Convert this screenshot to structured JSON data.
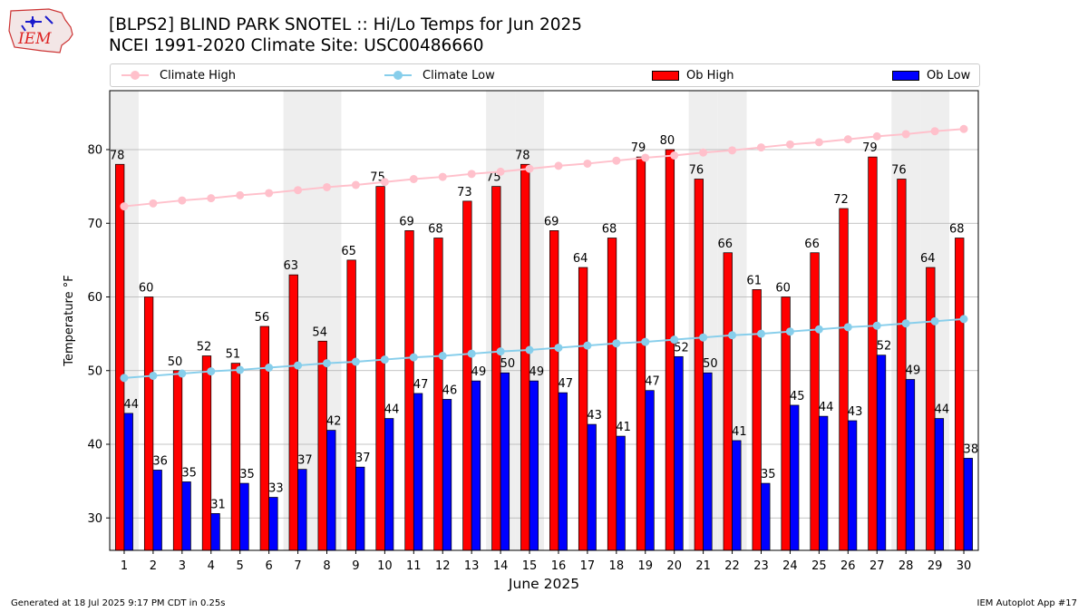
{
  "title_line1": "[BLPS2] BLIND PARK SNOTEL :: Hi/Lo Temps for Jun 2025",
  "title_line2": "NCEI 1991-2020 Climate Site: USC00486660",
  "logo_text": "IEM",
  "footer_left": "Generated at 18 Jul 2025 9:17 PM CDT in 0.25s",
  "footer_right": "IEM Autoplot App #17",
  "legend": {
    "climate_high": "Climate High",
    "climate_low": "Climate Low",
    "ob_high": "Ob High",
    "ob_low": "Ob Low"
  },
  "colors": {
    "climate_high": "#ffc0cb",
    "climate_low": "#87ceeb",
    "ob_high": "#ff0000",
    "ob_low": "#0000ff",
    "weekend_band": "#eeeeee",
    "grid": "#b0b0b0"
  },
  "chart_data": {
    "type": "bar",
    "xlabel": "June 2025",
    "ylabel": "Temperature °F",
    "ylim": [
      25.6,
      88
    ],
    "yticks": [
      30,
      40,
      50,
      60,
      70,
      80
    ],
    "grid": "horizontal",
    "legend_position": "top",
    "categories": [
      1,
      2,
      3,
      4,
      5,
      6,
      7,
      8,
      9,
      10,
      11,
      12,
      13,
      14,
      15,
      16,
      17,
      18,
      19,
      20,
      21,
      22,
      23,
      24,
      25,
      26,
      27,
      28,
      29,
      30
    ],
    "shaded_days": [
      1,
      7,
      8,
      14,
      15,
      21,
      22,
      28,
      29
    ],
    "series": [
      {
        "name": "Ob High",
        "kind": "bar",
        "values": [
          78,
          60,
          50,
          52,
          51,
          56,
          63,
          54,
          65,
          75,
          69,
          68,
          73,
          75,
          78,
          69,
          64,
          68,
          79,
          80,
          76,
          66,
          61,
          60,
          66,
          72,
          79,
          76,
          64,
          68
        ],
        "labels": [
          78,
          60,
          50,
          52,
          51,
          56,
          63,
          54,
          65,
          75,
          69,
          68,
          73,
          75,
          78,
          69,
          64,
          68,
          79,
          80,
          76,
          66,
          61,
          60,
          66,
          72,
          79,
          76,
          64,
          68
        ]
      },
      {
        "name": "Ob Low",
        "kind": "bar",
        "values": [
          44.2,
          36.5,
          34.9,
          30.6,
          34.7,
          32.8,
          36.6,
          41.9,
          36.9,
          43.5,
          46.9,
          46.1,
          48.6,
          49.7,
          48.6,
          47.0,
          42.7,
          41.1,
          47.3,
          51.9,
          49.7,
          40.5,
          34.7,
          45.3,
          43.8,
          43.2,
          52.1,
          48.8,
          43.5,
          38.1
        ],
        "labels": [
          44,
          36,
          35,
          31,
          35,
          33,
          37,
          42,
          37,
          44,
          47,
          46,
          49,
          50,
          49,
          47,
          43,
          41,
          47,
          52,
          50,
          41,
          35,
          45,
          44,
          43,
          52,
          49,
          44,
          38
        ]
      },
      {
        "name": "Climate High",
        "kind": "line",
        "values": [
          72.3,
          72.7,
          73.1,
          73.4,
          73.8,
          74.1,
          74.5,
          74.9,
          75.2,
          75.6,
          76.0,
          76.3,
          76.7,
          77.0,
          77.4,
          77.8,
          78.1,
          78.5,
          78.9,
          79.2,
          79.6,
          79.9,
          80.3,
          80.7,
          81.0,
          81.4,
          81.8,
          82.1,
          82.5,
          82.8
        ]
      },
      {
        "name": "Climate Low",
        "kind": "line",
        "values": [
          49.0,
          49.3,
          49.6,
          49.9,
          50.1,
          50.4,
          50.7,
          51.0,
          51.2,
          51.5,
          51.8,
          52.0,
          52.3,
          52.6,
          52.8,
          53.1,
          53.4,
          53.7,
          53.9,
          54.2,
          54.5,
          54.8,
          55.0,
          55.3,
          55.6,
          55.9,
          56.1,
          56.4,
          56.7,
          57.0
        ]
      }
    ]
  }
}
